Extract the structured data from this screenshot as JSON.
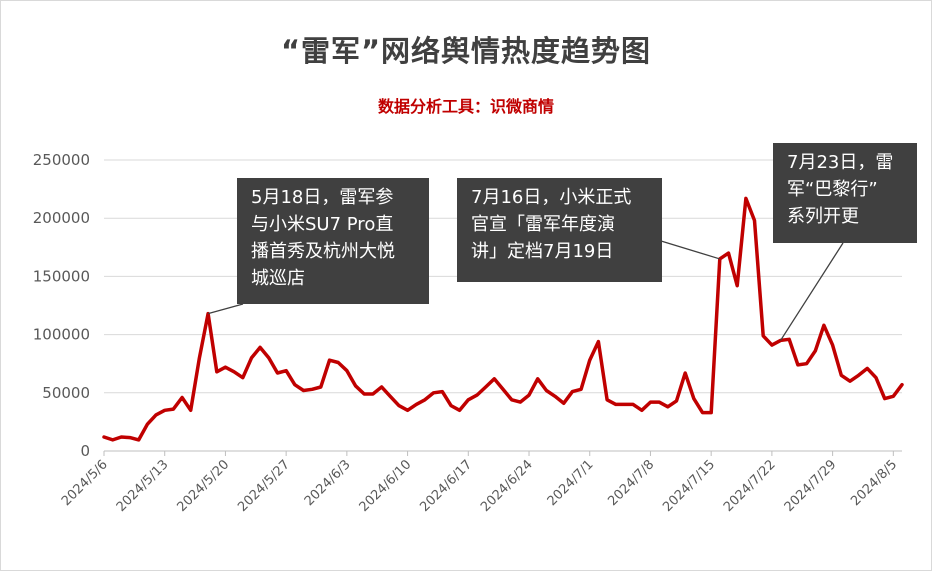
{
  "chart_data": {
    "type": "line",
    "title": "“雷军”网络舆情热度趋势图",
    "subtitle": "数据分析工具：识微商情",
    "xlabel": "",
    "ylabel": "",
    "ylim": [
      0,
      250000
    ],
    "yticks": [
      "0",
      "50000",
      "100000",
      "150000",
      "200000",
      "250000"
    ],
    "x_tick_labels": [
      "2024/5/6",
      "2024/5/13",
      "2024/5/20",
      "2024/5/27",
      "2024/6/3",
      "2024/6/10",
      "2024/6/17",
      "2024/6/24",
      "2024/7/1",
      "2024/7/8",
      "2024/7/15",
      "2024/7/22",
      "2024/7/29",
      "2024/8/5"
    ],
    "grid": true,
    "legend": "none",
    "series": [
      {
        "color": "#c00000",
        "x": [
          "2024/5/6",
          "2024/5/7",
          "2024/5/8",
          "2024/5/9",
          "2024/5/10",
          "2024/5/11",
          "2024/5/12",
          "2024/5/13",
          "2024/5/14",
          "2024/5/15",
          "2024/5/16",
          "2024/5/17",
          "2024/5/18",
          "2024/5/19",
          "2024/5/20",
          "2024/5/21",
          "2024/5/22",
          "2024/5/23",
          "2024/5/24",
          "2024/5/25",
          "2024/5/26",
          "2024/5/27",
          "2024/5/28",
          "2024/5/29",
          "2024/5/30",
          "2024/5/31",
          "2024/6/1",
          "2024/6/2",
          "2024/6/3",
          "2024/6/4",
          "2024/6/5",
          "2024/6/6",
          "2024/6/7",
          "2024/6/8",
          "2024/6/9",
          "2024/6/10",
          "2024/6/11",
          "2024/6/12",
          "2024/6/13",
          "2024/6/14",
          "2024/6/15",
          "2024/6/16",
          "2024/6/17",
          "2024/6/18",
          "2024/6/19",
          "2024/6/20",
          "2024/6/21",
          "2024/6/22",
          "2024/6/23",
          "2024/6/24",
          "2024/6/25",
          "2024/6/26",
          "2024/6/27",
          "2024/6/28",
          "2024/6/29",
          "2024/6/30",
          "2024/7/1",
          "2024/7/2",
          "2024/7/3",
          "2024/7/4",
          "2024/7/5",
          "2024/7/6",
          "2024/7/7",
          "2024/7/8",
          "2024/7/9",
          "2024/7/10",
          "2024/7/11",
          "2024/7/12",
          "2024/7/13",
          "2024/7/14",
          "2024/7/15",
          "2024/7/16",
          "2024/7/17",
          "2024/7/18",
          "2024/7/19",
          "2024/7/20",
          "2024/7/21",
          "2024/7/22",
          "2024/7/23",
          "2024/7/24",
          "2024/7/25",
          "2024/7/26",
          "2024/7/27",
          "2024/7/28",
          "2024/7/29",
          "2024/7/30",
          "2024/7/31",
          "2024/8/1",
          "2024/8/2",
          "2024/8/3",
          "2024/8/4",
          "2024/8/5",
          "2024/8/6"
        ],
        "values": [
          12000,
          9500,
          12000,
          11500,
          9500,
          23000,
          31000,
          35000,
          36000,
          46000,
          35000,
          80000,
          118000,
          68000,
          72000,
          68000,
          63000,
          80000,
          89000,
          80000,
          67000,
          69000,
          57000,
          52000,
          53000,
          55000,
          78000,
          76000,
          69000,
          56000,
          49000,
          49000,
          55000,
          47000,
          39000,
          35000,
          40000,
          44000,
          50000,
          51000,
          39000,
          35000,
          44000,
          48000,
          55000,
          62000,
          53000,
          44000,
          42000,
          48000,
          62000,
          52000,
          47000,
          41000,
          51000,
          53000,
          78000,
          94000,
          44000,
          40000,
          40000,
          40000,
          35000,
          42000,
          42000,
          38000,
          43000,
          67000,
          45000,
          33000,
          33000,
          165000,
          170000,
          142000,
          217000,
          198000,
          99000,
          91000,
          95000,
          96000,
          74000,
          75000,
          86000,
          108000,
          91000,
          65000,
          60000,
          65000,
          71000,
          63000,
          45000,
          47000,
          57000
        ]
      }
    ],
    "annotations": [
      {
        "text": "5月18日，雷军参\n与小米SU7 Pro直\n播首秀及杭州大悦\n城巡店",
        "x": "2024/5/18"
      },
      {
        "text": "7月16日，小米正式\n官宣「雷军年度演\n讲」定档7月19日",
        "x": "2024/7/16"
      },
      {
        "text": "7月23日，雷\n军“巴黎行”\n系列开更",
        "x": "2024/7/23"
      }
    ]
  }
}
